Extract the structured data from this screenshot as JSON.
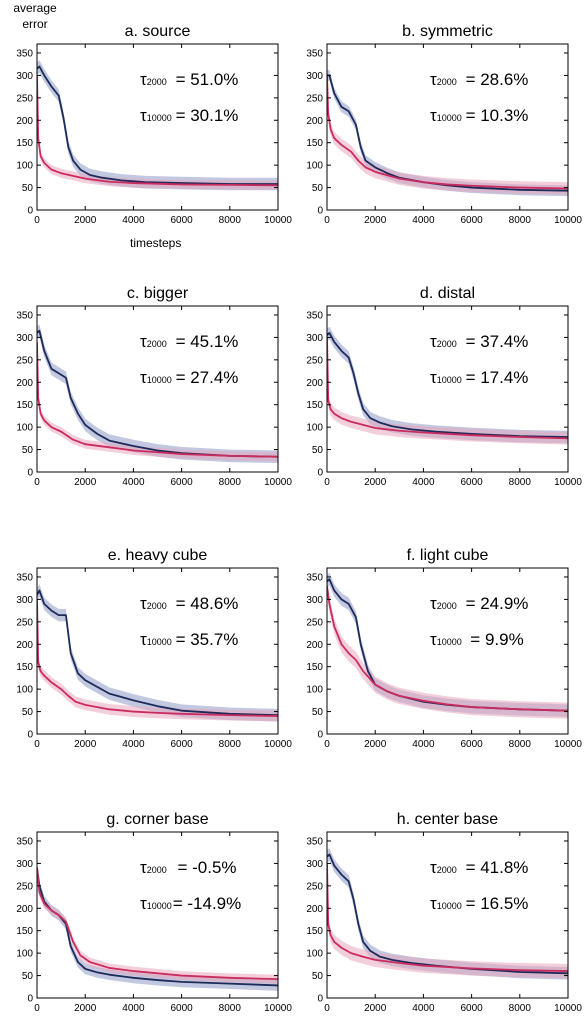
{
  "figure": {
    "ylabel_line1": "average",
    "ylabel_line2": "error",
    "xlabel": "timesteps"
  },
  "colors": {
    "blue": "#1d2b5a",
    "pink": "#cc2b5e",
    "blue_band": "#8f9ac6",
    "pink_band": "#e8a7bd"
  },
  "chart_data": [
    {
      "type": "line",
      "title": "a. source",
      "annotations": [
        {
          "label": "τ2000",
          "value": "= 51.0%"
        },
        {
          "label": "τ10000",
          "value": "= 30.1%"
        }
      ],
      "xlim": [
        0,
        10000
      ],
      "ylim": [
        0,
        370
      ],
      "xticks": [
        0,
        2000,
        4000,
        6000,
        8000,
        10000
      ],
      "yticks": [
        0,
        50,
        100,
        150,
        200,
        250,
        300,
        350
      ],
      "series": [
        {
          "color": "blue",
          "band": 14,
          "x": [
            0,
            100,
            300,
            600,
            900,
            1100,
            1300,
            1500,
            1800,
            2200,
            2700,
            3500,
            4500,
            6000,
            8000,
            10000
          ],
          "y": [
            315,
            320,
            300,
            275,
            255,
            205,
            140,
            110,
            90,
            78,
            72,
            66,
            62,
            60,
            58,
            58
          ]
        },
        {
          "color": "pink",
          "band": 10,
          "x": [
            0,
            50,
            150,
            300,
            600,
            1000,
            1500,
            2000,
            3000,
            4000,
            6000,
            8000,
            10000
          ],
          "y": [
            300,
            160,
            120,
            105,
            90,
            82,
            76,
            70,
            63,
            60,
            57,
            56,
            55
          ]
        }
      ]
    },
    {
      "type": "line",
      "title": "b. symmetric",
      "annotations": [
        {
          "label": "τ2000",
          "value": "= 28.6%"
        },
        {
          "label": "τ10000",
          "value": "= 10.3%"
        }
      ],
      "xlim": [
        0,
        10000
      ],
      "ylim": [
        0,
        370
      ],
      "xticks": [
        0,
        2000,
        4000,
        6000,
        8000,
        10000
      ],
      "yticks": [
        0,
        50,
        100,
        150,
        200,
        250,
        300,
        350
      ],
      "series": [
        {
          "color": "blue",
          "band": 12,
          "x": [
            0,
            100,
            300,
            600,
            900,
            1200,
            1400,
            1600,
            2000,
            2500,
            3000,
            4000,
            5000,
            6000,
            8000,
            10000
          ],
          "y": [
            300,
            300,
            260,
            230,
            220,
            190,
            140,
            110,
            95,
            82,
            72,
            62,
            55,
            50,
            45,
            43
          ]
        },
        {
          "color": "pink",
          "band": 14,
          "x": [
            0,
            50,
            150,
            300,
            600,
            1000,
            1300,
            1600,
            2000,
            3000,
            4000,
            5000,
            6000,
            8000,
            10000
          ],
          "y": [
            300,
            215,
            180,
            160,
            145,
            130,
            110,
            95,
            85,
            70,
            62,
            57,
            54,
            50,
            48
          ]
        }
      ]
    },
    {
      "type": "line",
      "title": "c. bigger",
      "annotations": [
        {
          "label": "τ2000",
          "value": "= 45.1%"
        },
        {
          "label": "τ10000",
          "value": "= 27.4%"
        }
      ],
      "xlim": [
        0,
        10000
      ],
      "ylim": [
        0,
        370
      ],
      "xticks": [
        0,
        2000,
        4000,
        6000,
        8000,
        10000
      ],
      "yticks": [
        0,
        50,
        100,
        150,
        200,
        250,
        300,
        350
      ],
      "series": [
        {
          "color": "blue",
          "band": 14,
          "x": [
            0,
            100,
            300,
            600,
            900,
            1200,
            1400,
            1700,
            2000,
            2500,
            3000,
            4000,
            5000,
            6000,
            8000,
            10000
          ],
          "y": [
            310,
            315,
            270,
            230,
            220,
            210,
            165,
            130,
            105,
            85,
            70,
            58,
            48,
            42,
            36,
            34
          ]
        },
        {
          "color": "pink",
          "band": 10,
          "x": [
            0,
            50,
            150,
            300,
            600,
            1000,
            1500,
            2000,
            3000,
            4000,
            5000,
            6000,
            8000,
            10000
          ],
          "y": [
            290,
            165,
            130,
            115,
            100,
            90,
            72,
            62,
            55,
            48,
            44,
            40,
            36,
            34
          ]
        }
      ]
    },
    {
      "type": "line",
      "title": "d. distal",
      "annotations": [
        {
          "label": "τ2000",
          "value": "= 37.4%"
        },
        {
          "label": "τ10000",
          "value": "= 17.4%"
        }
      ],
      "xlim": [
        0,
        10000
      ],
      "ylim": [
        0,
        370
      ],
      "xticks": [
        0,
        2000,
        4000,
        6000,
        8000,
        10000
      ],
      "yticks": [
        0,
        50,
        100,
        150,
        200,
        250,
        300,
        350
      ],
      "series": [
        {
          "color": "blue",
          "band": 14,
          "x": [
            0,
            100,
            300,
            600,
            900,
            1100,
            1300,
            1500,
            1800,
            2200,
            2700,
            3500,
            4500,
            6000,
            8000,
            10000
          ],
          "y": [
            305,
            310,
            290,
            270,
            255,
            220,
            175,
            140,
            120,
            110,
            102,
            95,
            90,
            85,
            80,
            78
          ]
        },
        {
          "color": "pink",
          "band": 14,
          "x": [
            0,
            50,
            150,
            300,
            600,
            1000,
            1500,
            2000,
            3000,
            4000,
            6000,
            8000,
            10000
          ],
          "y": [
            300,
            160,
            140,
            130,
            120,
            112,
            105,
            98,
            92,
            88,
            82,
            78,
            75
          ]
        }
      ]
    },
    {
      "type": "line",
      "title": "e. heavy cube",
      "annotations": [
        {
          "label": "τ2000",
          "value": "= 48.6%"
        },
        {
          "label": "τ10000",
          "value": "= 35.7%"
        }
      ],
      "xlim": [
        0,
        10000
      ],
      "ylim": [
        0,
        370
      ],
      "xticks": [
        0,
        2000,
        4000,
        6000,
        8000,
        10000
      ],
      "yticks": [
        0,
        50,
        100,
        150,
        200,
        250,
        300,
        350
      ],
      "series": [
        {
          "color": "blue",
          "band": 14,
          "x": [
            0,
            100,
            300,
            600,
            900,
            1200,
            1400,
            1700,
            2000,
            2500,
            3000,
            4000,
            5000,
            6000,
            8000,
            10000
          ],
          "y": [
            310,
            320,
            290,
            275,
            265,
            265,
            180,
            135,
            120,
            105,
            90,
            75,
            62,
            52,
            45,
            42
          ]
        },
        {
          "color": "pink",
          "band": 12,
          "x": [
            0,
            50,
            150,
            300,
            600,
            1000,
            1300,
            1600,
            2000,
            3000,
            4000,
            5000,
            6000,
            8000,
            10000
          ],
          "y": [
            300,
            160,
            140,
            130,
            115,
            100,
            85,
            72,
            65,
            55,
            50,
            47,
            45,
            42,
            40
          ]
        }
      ]
    },
    {
      "type": "line",
      "title": "f. light cube",
      "annotations": [
        {
          "label": "τ2000",
          "value": "= 24.9%"
        },
        {
          "label": "τ10000",
          "value": "= 9.9%"
        }
      ],
      "xlim": [
        0,
        10000
      ],
      "ylim": [
        0,
        370
      ],
      "xticks": [
        0,
        2000,
        4000,
        6000,
        8000,
        10000
      ],
      "yticks": [
        0,
        50,
        100,
        150,
        200,
        250,
        300,
        350
      ],
      "series": [
        {
          "color": "blue",
          "band": 14,
          "x": [
            0,
            100,
            300,
            600,
            900,
            1200,
            1400,
            1700,
            2000,
            2500,
            3000,
            4000,
            5000,
            6000,
            8000,
            10000
          ],
          "y": [
            340,
            345,
            320,
            300,
            290,
            260,
            200,
            140,
            110,
            95,
            85,
            72,
            65,
            60,
            55,
            52
          ]
        },
        {
          "color": "pink",
          "band": 18,
          "x": [
            0,
            100,
            300,
            600,
            900,
            1200,
            1500,
            2000,
            2500,
            3000,
            4000,
            5000,
            6000,
            8000,
            10000
          ],
          "y": [
            330,
            290,
            240,
            200,
            180,
            165,
            140,
            110,
            95,
            85,
            74,
            66,
            60,
            55,
            52
          ]
        }
      ]
    },
    {
      "type": "line",
      "title": "g. corner base",
      "annotations": [
        {
          "label": "τ2000",
          "value": "= -0.5%"
        },
        {
          "label": "τ10000",
          "value": "= -14.9%"
        }
      ],
      "xlim": [
        0,
        10000
      ],
      "ylim": [
        0,
        370
      ],
      "xticks": [
        0,
        2000,
        4000,
        6000,
        8000,
        10000
      ],
      "yticks": [
        0,
        50,
        100,
        150,
        200,
        250,
        300,
        350
      ],
      "series": [
        {
          "color": "blue",
          "band": 12,
          "x": [
            0,
            100,
            300,
            600,
            900,
            1200,
            1400,
            1700,
            2000,
            2500,
            3000,
            4000,
            5000,
            6000,
            8000,
            10000
          ],
          "y": [
            290,
            250,
            215,
            195,
            185,
            165,
            115,
            80,
            65,
            57,
            52,
            45,
            40,
            36,
            32,
            28
          ]
        },
        {
          "color": "pink",
          "band": 10,
          "x": [
            0,
            100,
            300,
            600,
            900,
            1200,
            1500,
            1800,
            2200,
            3000,
            4000,
            5000,
            6000,
            8000,
            10000
          ],
          "y": [
            290,
            235,
            210,
            195,
            185,
            170,
            125,
            95,
            80,
            67,
            60,
            55,
            50,
            45,
            42
          ]
        }
      ]
    },
    {
      "type": "line",
      "title": "h. center base",
      "annotations": [
        {
          "label": "τ2000",
          "value": "= 41.8%"
        },
        {
          "label": "τ10000",
          "value": "= 16.5%"
        }
      ],
      "xlim": [
        0,
        10000
      ],
      "ylim": [
        0,
        370
      ],
      "xticks": [
        0,
        2000,
        4000,
        6000,
        8000,
        10000
      ],
      "yticks": [
        0,
        50,
        100,
        150,
        200,
        250,
        300,
        350
      ],
      "series": [
        {
          "color": "blue",
          "band": 14,
          "x": [
            0,
            100,
            300,
            600,
            900,
            1100,
            1300,
            1500,
            1800,
            2200,
            2700,
            3500,
            4500,
            6000,
            8000,
            10000
          ],
          "y": [
            315,
            320,
            295,
            275,
            260,
            220,
            165,
            125,
            105,
            92,
            85,
            78,
            72,
            65,
            58,
            55
          ]
        },
        {
          "color": "pink",
          "band": 16,
          "x": [
            0,
            50,
            150,
            300,
            600,
            1000,
            1500,
            2000,
            3000,
            4000,
            6000,
            8000,
            10000
          ],
          "y": [
            300,
            165,
            140,
            125,
            112,
            100,
            92,
            85,
            78,
            72,
            66,
            62,
            60
          ]
        }
      ]
    }
  ]
}
